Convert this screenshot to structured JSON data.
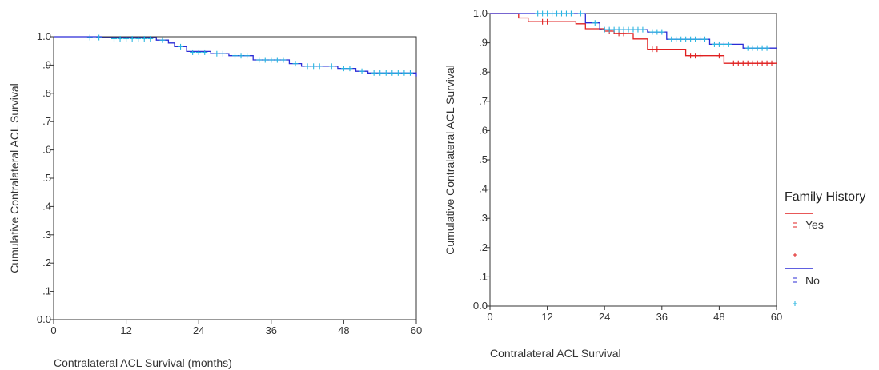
{
  "chart_data": [
    {
      "type": "line",
      "title": "",
      "xlabel": "Contralateral ACL Survival (months)",
      "ylabel": "Cumulative Contralateral ACL Survival",
      "xlim": [
        0,
        60
      ],
      "ylim": [
        0,
        1
      ],
      "xticks": [
        "0",
        "12",
        "24",
        "36",
        "48",
        "60"
      ],
      "yticks": [
        "0.0",
        ".1",
        ".2",
        ".3",
        ".4",
        ".5",
        ".6",
        ".7",
        ".8",
        ".9",
        "1.0"
      ],
      "grid": false,
      "legend": null,
      "series": [
        {
          "color": "#2b2bd6",
          "step": [
            [
              0,
              1.0
            ],
            [
              8,
              1.0
            ],
            [
              8,
              0.997
            ],
            [
              17,
              0.997
            ],
            [
              17,
              0.988
            ],
            [
              19,
              0.988
            ],
            [
              19,
              0.978
            ],
            [
              20,
              0.978
            ],
            [
              20,
              0.965
            ],
            [
              22,
              0.965
            ],
            [
              22,
              0.948
            ],
            [
              26,
              0.948
            ],
            [
              26,
              0.94
            ],
            [
              29,
              0.94
            ],
            [
              29,
              0.933
            ],
            [
              33,
              0.933
            ],
            [
              33,
              0.918
            ],
            [
              39,
              0.918
            ],
            [
              39,
              0.905
            ],
            [
              41,
              0.905
            ],
            [
              41,
              0.896
            ],
            [
              47,
              0.896
            ],
            [
              47,
              0.888
            ],
            [
              50,
              0.888
            ],
            [
              50,
              0.878
            ],
            [
              52,
              0.878
            ],
            [
              52,
              0.872
            ],
            [
              60,
              0.872
            ],
            [
              60,
              0.86
            ]
          ]
        }
      ],
      "censored": {
        "color": "#29b6e0",
        "points": [
          [
            6,
            0.997
          ],
          [
            7.5,
            0.997
          ],
          [
            10,
            0.993
          ],
          [
            11,
            0.993
          ],
          [
            12,
            0.993
          ],
          [
            13,
            0.993
          ],
          [
            14,
            0.993
          ],
          [
            15,
            0.993
          ],
          [
            16,
            0.993
          ],
          [
            18,
            0.988
          ],
          [
            21,
            0.965
          ],
          [
            23,
            0.945
          ],
          [
            24,
            0.945
          ],
          [
            25,
            0.945
          ],
          [
            27,
            0.94
          ],
          [
            28,
            0.94
          ],
          [
            30,
            0.933
          ],
          [
            31,
            0.933
          ],
          [
            32,
            0.933
          ],
          [
            34,
            0.918
          ],
          [
            35,
            0.918
          ],
          [
            36,
            0.918
          ],
          [
            37,
            0.918
          ],
          [
            38,
            0.918
          ],
          [
            40,
            0.905
          ],
          [
            42,
            0.896
          ],
          [
            43,
            0.896
          ],
          [
            44,
            0.896
          ],
          [
            46,
            0.896
          ],
          [
            48,
            0.888
          ],
          [
            49,
            0.888
          ],
          [
            51,
            0.878
          ],
          [
            53,
            0.872
          ],
          [
            54,
            0.872
          ],
          [
            55,
            0.872
          ],
          [
            56,
            0.872
          ],
          [
            57,
            0.872
          ],
          [
            58,
            0.872
          ],
          [
            59,
            0.872
          ]
        ]
      }
    },
    {
      "type": "line",
      "title": "",
      "xlabel": "Contralateral ACL Survival",
      "ylabel": "Cumulative Contralateral ACL Survival",
      "xlim": [
        0,
        60
      ],
      "ylim": [
        0,
        1
      ],
      "xticks": [
        "0",
        "12",
        "24",
        "36",
        "48",
        "60"
      ],
      "yticks": [
        "0.0",
        ".1",
        ".2",
        ".3",
        ".4",
        ".5",
        ".6",
        ".7",
        ".8",
        ".9",
        "1.0"
      ],
      "grid": false,
      "legend": {
        "position": "right",
        "title": "Family History",
        "entries": [
          {
            "label": "Yes",
            "line_color": "#e02020",
            "marker": "square",
            "marker_color": "#e02020"
          },
          {
            "label": "",
            "marker": "plus",
            "marker_color": "#e02020"
          },
          {
            "label": "No",
            "line_color": "#2b2bd6",
            "marker": "square",
            "marker_color": "#2b2bd6"
          },
          {
            "label": "",
            "marker": "plus",
            "marker_color": "#29b6e0"
          }
        ]
      },
      "series": [
        {
          "name": "Yes",
          "color": "#e02020",
          "step": [
            [
              0,
              1.0
            ],
            [
              6,
              1.0
            ],
            [
              6,
              0.985
            ],
            [
              8,
              0.985
            ],
            [
              8,
              0.972
            ],
            [
              18,
              0.972
            ],
            [
              18,
              0.965
            ],
            [
              20,
              0.965
            ],
            [
              20,
              0.948
            ],
            [
              24,
              0.948
            ],
            [
              24,
              0.94
            ],
            [
              26,
              0.94
            ],
            [
              26,
              0.932
            ],
            [
              30,
              0.932
            ],
            [
              30,
              0.913
            ],
            [
              33,
              0.913
            ],
            [
              33,
              0.878
            ],
            [
              41,
              0.878
            ],
            [
              41,
              0.856
            ],
            [
              49,
              0.856
            ],
            [
              49,
              0.83
            ],
            [
              60,
              0.83
            ]
          ]
        },
        {
          "name": "No",
          "color": "#2b2bd6",
          "step": [
            [
              0,
              1.0
            ],
            [
              20,
              1.0
            ],
            [
              20,
              0.968
            ],
            [
              23,
              0.968
            ],
            [
              23,
              0.945
            ],
            [
              33,
              0.945
            ],
            [
              33,
              0.937
            ],
            [
              37,
              0.937
            ],
            [
              37,
              0.912
            ],
            [
              46,
              0.912
            ],
            [
              46,
              0.895
            ],
            [
              53,
              0.895
            ],
            [
              53,
              0.882
            ],
            [
              60,
              0.882
            ]
          ]
        }
      ],
      "censored": [
        {
          "color": "#e02020",
          "points": [
            [
              11,
              0.972
            ],
            [
              12,
              0.972
            ],
            [
              25,
              0.94
            ],
            [
              27,
              0.932
            ],
            [
              28,
              0.932
            ],
            [
              34,
              0.878
            ],
            [
              35,
              0.878
            ],
            [
              42,
              0.856
            ],
            [
              43,
              0.856
            ],
            [
              44,
              0.856
            ],
            [
              48,
              0.856
            ],
            [
              51,
              0.83
            ],
            [
              52,
              0.83
            ],
            [
              53,
              0.83
            ],
            [
              54,
              0.83
            ],
            [
              55,
              0.83
            ],
            [
              56,
              0.83
            ],
            [
              57,
              0.83
            ],
            [
              58,
              0.83
            ],
            [
              59,
              0.83
            ]
          ]
        },
        {
          "color": "#29b6e0",
          "points": [
            [
              10,
              1.0
            ],
            [
              11,
              1.0
            ],
            [
              12,
              1.0
            ],
            [
              13,
              1.0
            ],
            [
              14,
              1.0
            ],
            [
              15,
              1.0
            ],
            [
              16,
              1.0
            ],
            [
              17,
              1.0
            ],
            [
              19,
              1.0
            ],
            [
              22,
              0.968
            ],
            [
              24,
              0.945
            ],
            [
              25,
              0.945
            ],
            [
              26,
              0.945
            ],
            [
              27,
              0.945
            ],
            [
              28,
              0.945
            ],
            [
              29,
              0.945
            ],
            [
              30,
              0.945
            ],
            [
              31,
              0.945
            ],
            [
              32,
              0.945
            ],
            [
              34,
              0.937
            ],
            [
              35,
              0.937
            ],
            [
              36,
              0.937
            ],
            [
              38,
              0.912
            ],
            [
              39,
              0.912
            ],
            [
              40,
              0.912
            ],
            [
              41,
              0.912
            ],
            [
              42,
              0.912
            ],
            [
              43,
              0.912
            ],
            [
              44,
              0.912
            ],
            [
              45,
              0.912
            ],
            [
              47,
              0.895
            ],
            [
              48,
              0.895
            ],
            [
              49,
              0.895
            ],
            [
              50,
              0.895
            ],
            [
              54,
              0.882
            ],
            [
              55,
              0.882
            ],
            [
              56,
              0.882
            ],
            [
              57,
              0.882
            ],
            [
              58,
              0.882
            ]
          ]
        }
      ]
    }
  ]
}
